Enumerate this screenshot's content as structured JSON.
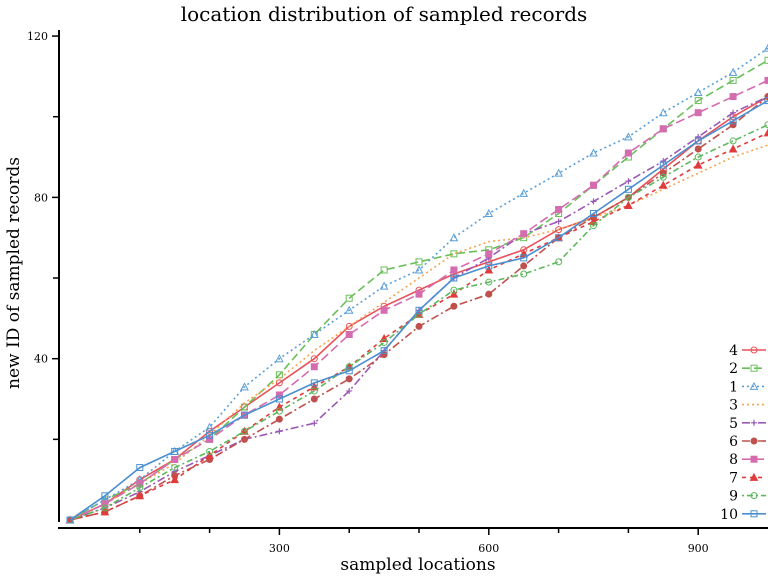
{
  "chart_data": {
    "type": "line",
    "title": "location distribution of sampled records",
    "xlabel": "sampled locations",
    "ylabel": "new ID of sampled records",
    "xlim": [
      0,
      1000
    ],
    "ylim": [
      0,
      122
    ],
    "xticks": [
      300,
      600,
      900
    ],
    "yticks": [
      40,
      80,
      120
    ],
    "x_minor_ticks": [
      100,
      200,
      400,
      500,
      700,
      800
    ],
    "y_minor_ticks": [
      20,
      60,
      100
    ],
    "grid": false,
    "legend_position": "bottom-right",
    "series": [
      {
        "name": "4",
        "color": "#e8525a",
        "dash": "",
        "marker": "circle-open",
        "points": [
          [
            0,
            0
          ],
          [
            50,
            4
          ],
          [
            100,
            10
          ],
          [
            150,
            15
          ],
          [
            200,
            22
          ],
          [
            250,
            28
          ],
          [
            300,
            34
          ],
          [
            350,
            40
          ],
          [
            400,
            48
          ],
          [
            450,
            53
          ],
          [
            500,
            57
          ],
          [
            550,
            61
          ],
          [
            600,
            64
          ],
          [
            650,
            67
          ],
          [
            700,
            72
          ],
          [
            750,
            75
          ],
          [
            800,
            80
          ],
          [
            850,
            87
          ],
          [
            900,
            94
          ],
          [
            950,
            100
          ],
          [
            1000,
            105
          ]
        ]
      },
      {
        "name": "2",
        "color": "#6bbf5a",
        "dash": "8,4",
        "marker": "square-open",
        "points": [
          [
            0,
            0
          ],
          [
            50,
            5
          ],
          [
            100,
            9
          ],
          [
            150,
            15
          ],
          [
            200,
            20
          ],
          [
            250,
            28
          ],
          [
            300,
            36
          ],
          [
            350,
            46
          ],
          [
            400,
            55
          ],
          [
            450,
            62
          ],
          [
            500,
            64
          ],
          [
            550,
            66
          ],
          [
            600,
            67
          ],
          [
            650,
            70
          ],
          [
            700,
            76
          ],
          [
            750,
            83
          ],
          [
            800,
            90
          ],
          [
            850,
            97
          ],
          [
            900,
            104
          ],
          [
            950,
            109
          ],
          [
            1000,
            114
          ]
        ]
      },
      {
        "name": "1",
        "color": "#5a9fd8",
        "dash": "2,3",
        "marker": "triangle-open",
        "points": [
          [
            0,
            0
          ],
          [
            50,
            5
          ],
          [
            100,
            10
          ],
          [
            150,
            17
          ],
          [
            200,
            23
          ],
          [
            250,
            33
          ],
          [
            300,
            40
          ],
          [
            350,
            46
          ],
          [
            400,
            52
          ],
          [
            450,
            58
          ],
          [
            500,
            62
          ],
          [
            550,
            70
          ],
          [
            600,
            76
          ],
          [
            650,
            81
          ],
          [
            700,
            86
          ],
          [
            750,
            91
          ],
          [
            800,
            95
          ],
          [
            850,
            101
          ],
          [
            900,
            106
          ],
          [
            950,
            111
          ],
          [
            1000,
            117
          ]
        ]
      },
      {
        "name": "3",
        "color": "#f5a450",
        "dash": "2,3",
        "marker": "none",
        "points": [
          [
            0,
            0
          ],
          [
            50,
            4
          ],
          [
            100,
            9
          ],
          [
            150,
            14
          ],
          [
            200,
            21
          ],
          [
            250,
            29
          ],
          [
            300,
            35
          ],
          [
            350,
            42
          ],
          [
            400,
            48
          ],
          [
            450,
            54
          ],
          [
            500,
            60
          ],
          [
            550,
            66
          ],
          [
            600,
            69
          ],
          [
            650,
            70
          ],
          [
            700,
            72
          ],
          [
            750,
            75
          ],
          [
            800,
            78
          ],
          [
            850,
            82
          ],
          [
            900,
            86
          ],
          [
            950,
            90
          ],
          [
            1000,
            93
          ]
        ]
      },
      {
        "name": "5",
        "color": "#9b59b6",
        "dash": "8,3,2,3",
        "marker": "plus",
        "points": [
          [
            0,
            0
          ],
          [
            50,
            3
          ],
          [
            100,
            7
          ],
          [
            150,
            12
          ],
          [
            200,
            16
          ],
          [
            250,
            20
          ],
          [
            300,
            22
          ],
          [
            350,
            24
          ],
          [
            400,
            32
          ],
          [
            450,
            42
          ],
          [
            500,
            52
          ],
          [
            550,
            60
          ],
          [
            600,
            65
          ],
          [
            650,
            71
          ],
          [
            700,
            74
          ],
          [
            750,
            79
          ],
          [
            800,
            84
          ],
          [
            850,
            89
          ],
          [
            900,
            95
          ],
          [
            950,
            101
          ],
          [
            1000,
            105
          ]
        ]
      },
      {
        "name": "6",
        "color": "#c0504d",
        "dash": "8,3,2,3",
        "marker": "circle-filled",
        "points": [
          [
            0,
            0
          ],
          [
            50,
            2
          ],
          [
            100,
            6
          ],
          [
            150,
            11
          ],
          [
            200,
            15
          ],
          [
            250,
            20
          ],
          [
            300,
            25
          ],
          [
            350,
            30
          ],
          [
            400,
            35
          ],
          [
            450,
            41
          ],
          [
            500,
            48
          ],
          [
            550,
            53
          ],
          [
            600,
            56
          ],
          [
            650,
            63
          ],
          [
            700,
            70
          ],
          [
            750,
            75
          ],
          [
            800,
            80
          ],
          [
            850,
            86
          ],
          [
            900,
            92
          ],
          [
            950,
            98
          ],
          [
            1000,
            105
          ]
        ]
      },
      {
        "name": "8",
        "color": "#d56cb0",
        "dash": "9,4",
        "marker": "square-filled",
        "points": [
          [
            0,
            0
          ],
          [
            50,
            4
          ],
          [
            100,
            9
          ],
          [
            150,
            15
          ],
          [
            200,
            20
          ],
          [
            250,
            26
          ],
          [
            300,
            31
          ],
          [
            350,
            38
          ],
          [
            400,
            46
          ],
          [
            450,
            52
          ],
          [
            500,
            56
          ],
          [
            550,
            62
          ],
          [
            600,
            66
          ],
          [
            650,
            71
          ],
          [
            700,
            77
          ],
          [
            750,
            83
          ],
          [
            800,
            91
          ],
          [
            850,
            97
          ],
          [
            900,
            101
          ],
          [
            950,
            105
          ],
          [
            1000,
            109
          ]
        ]
      },
      {
        "name": "7",
        "color": "#e03c3c",
        "dash": "4,4",
        "marker": "triangle-filled",
        "points": [
          [
            0,
            0
          ],
          [
            50,
            2
          ],
          [
            100,
            6
          ],
          [
            150,
            10
          ],
          [
            200,
            16
          ],
          [
            250,
            22
          ],
          [
            300,
            28
          ],
          [
            350,
            33
          ],
          [
            400,
            38
          ],
          [
            450,
            45
          ],
          [
            500,
            51
          ],
          [
            550,
            56
          ],
          [
            600,
            62
          ],
          [
            650,
            66
          ],
          [
            700,
            70
          ],
          [
            750,
            74
          ],
          [
            800,
            78
          ],
          [
            850,
            83
          ],
          [
            900,
            88
          ],
          [
            950,
            92
          ],
          [
            1000,
            96
          ]
        ]
      },
      {
        "name": "9",
        "color": "#5cb85c",
        "dash": "2,3,6,3",
        "marker": "circle-open",
        "points": [
          [
            0,
            0
          ],
          [
            50,
            3
          ],
          [
            100,
            8
          ],
          [
            150,
            13
          ],
          [
            200,
            17
          ],
          [
            250,
            22
          ],
          [
            300,
            27
          ],
          [
            350,
            32
          ],
          [
            400,
            38
          ],
          [
            450,
            44
          ],
          [
            500,
            51
          ],
          [
            550,
            57
          ],
          [
            600,
            59
          ],
          [
            650,
            61
          ],
          [
            700,
            64
          ],
          [
            750,
            73
          ],
          [
            800,
            80
          ],
          [
            850,
            85
          ],
          [
            900,
            90
          ],
          [
            950,
            94
          ],
          [
            1000,
            98
          ]
        ]
      },
      {
        "name": "10",
        "color": "#4a8fd0",
        "dash": "",
        "marker": "square-open",
        "points": [
          [
            0,
            0
          ],
          [
            50,
            6
          ],
          [
            100,
            13
          ],
          [
            150,
            17
          ],
          [
            200,
            21
          ],
          [
            250,
            26
          ],
          [
            300,
            30
          ],
          [
            350,
            34
          ],
          [
            400,
            37
          ],
          [
            450,
            42
          ],
          [
            500,
            52
          ],
          [
            550,
            60
          ],
          [
            600,
            63
          ],
          [
            650,
            65
          ],
          [
            700,
            70
          ],
          [
            750,
            76
          ],
          [
            800,
            82
          ],
          [
            850,
            88
          ],
          [
            900,
            94
          ],
          [
            950,
            99
          ],
          [
            1000,
            104
          ]
        ]
      }
    ]
  }
}
